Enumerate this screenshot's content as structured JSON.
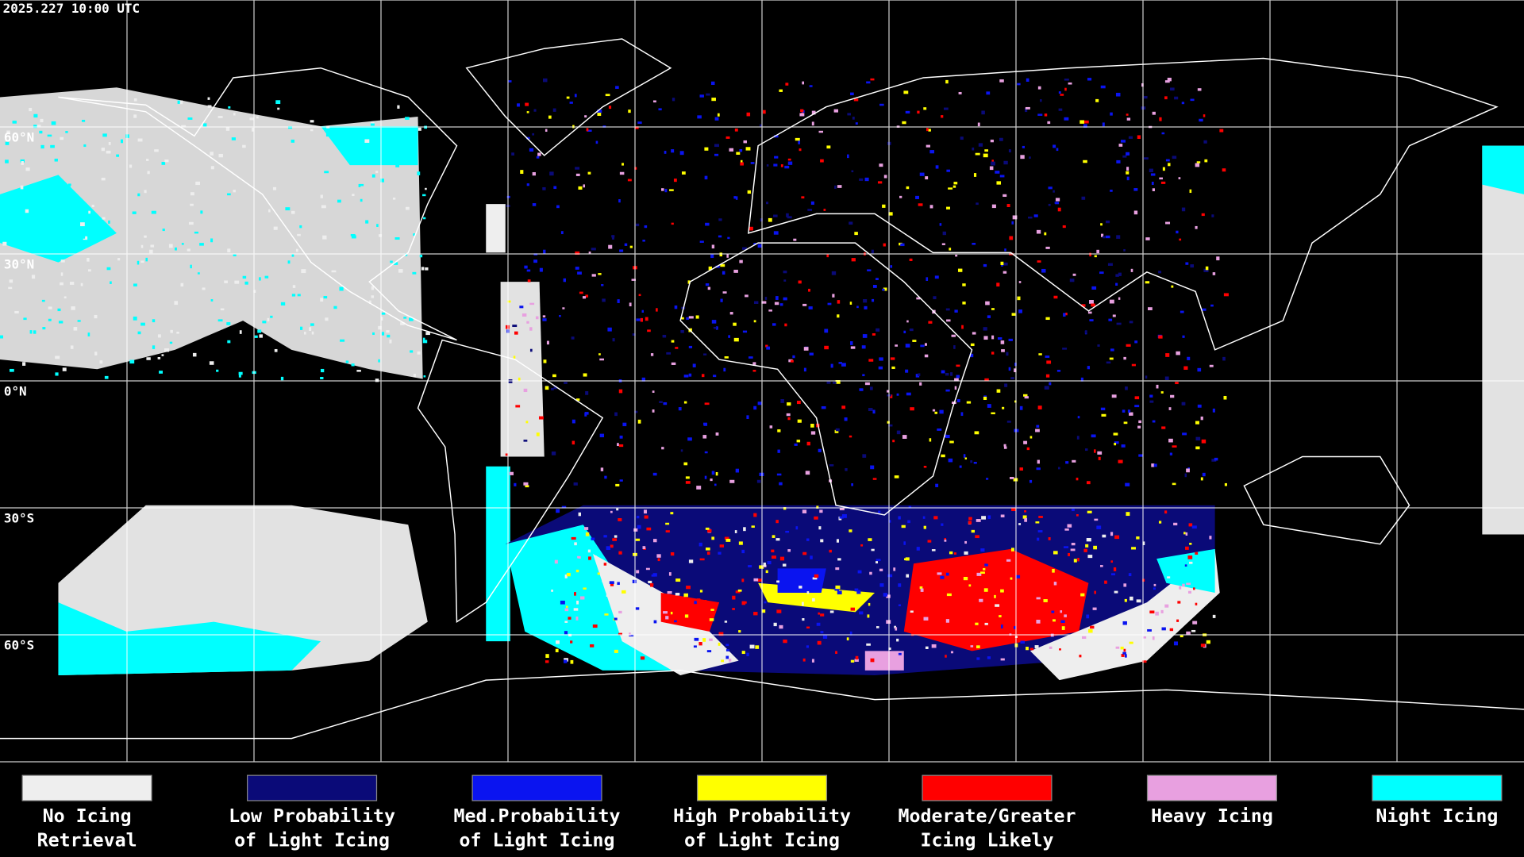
{
  "header": {
    "timestamp": "2025.227 10:00 UTC"
  },
  "map": {
    "latitude_labels": [
      "60°N",
      "30°N",
      "0°N",
      "30°S",
      "60°S"
    ]
  },
  "legend": {
    "items": [
      {
        "label": [
          "No Icing",
          "Retrieval"
        ],
        "color": "#eeeeee"
      },
      {
        "label": [
          "Low Probability",
          "of Light Icing"
        ],
        "color": "#0a0a78"
      },
      {
        "label": [
          "Med.Probability",
          "of Light Icing"
        ],
        "color": "#0a14f0"
      },
      {
        "label": [
          "High Probability",
          "of Light Icing"
        ],
        "color": "#ffff00"
      },
      {
        "label": [
          "Moderate/Greater",
          "Icing Likely"
        ],
        "color": "#ff0000"
      },
      {
        "label": [
          "Heavy Icing"
        ],
        "color": "#e8a0e0"
      },
      {
        "label": [
          "Night Icing"
        ],
        "color": "#00ffff"
      }
    ]
  }
}
